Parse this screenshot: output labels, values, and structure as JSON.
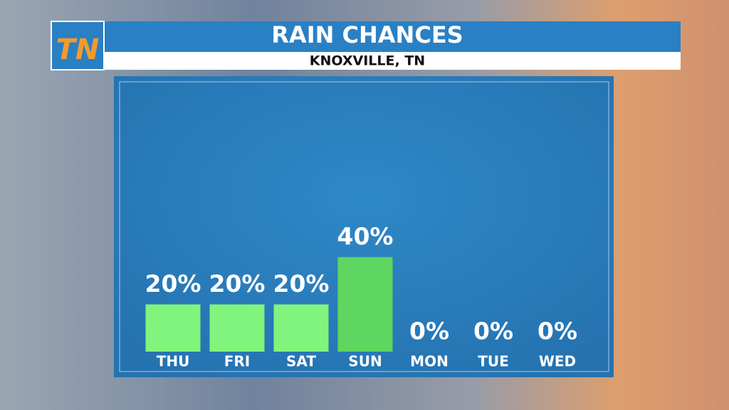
{
  "logo": "TN",
  "chart_data": {
    "type": "bar",
    "title": "RAIN CHANCES",
    "subtitle": "KNOXVILLE, TN",
    "categories": [
      "THU",
      "FRI",
      "SAT",
      "SUN",
      "MON",
      "TUE",
      "WED"
    ],
    "values": [
      20,
      20,
      20,
      40,
      0,
      0,
      0
    ],
    "value_labels": [
      "20%",
      "20%",
      "20%",
      "40%",
      "0%",
      "0%",
      "0%"
    ],
    "colors": [
      "#80f47c",
      "#80f47c",
      "#80f47c",
      "#5fd65f",
      "#80f47c",
      "#80f47c",
      "#80f47c"
    ]
  }
}
